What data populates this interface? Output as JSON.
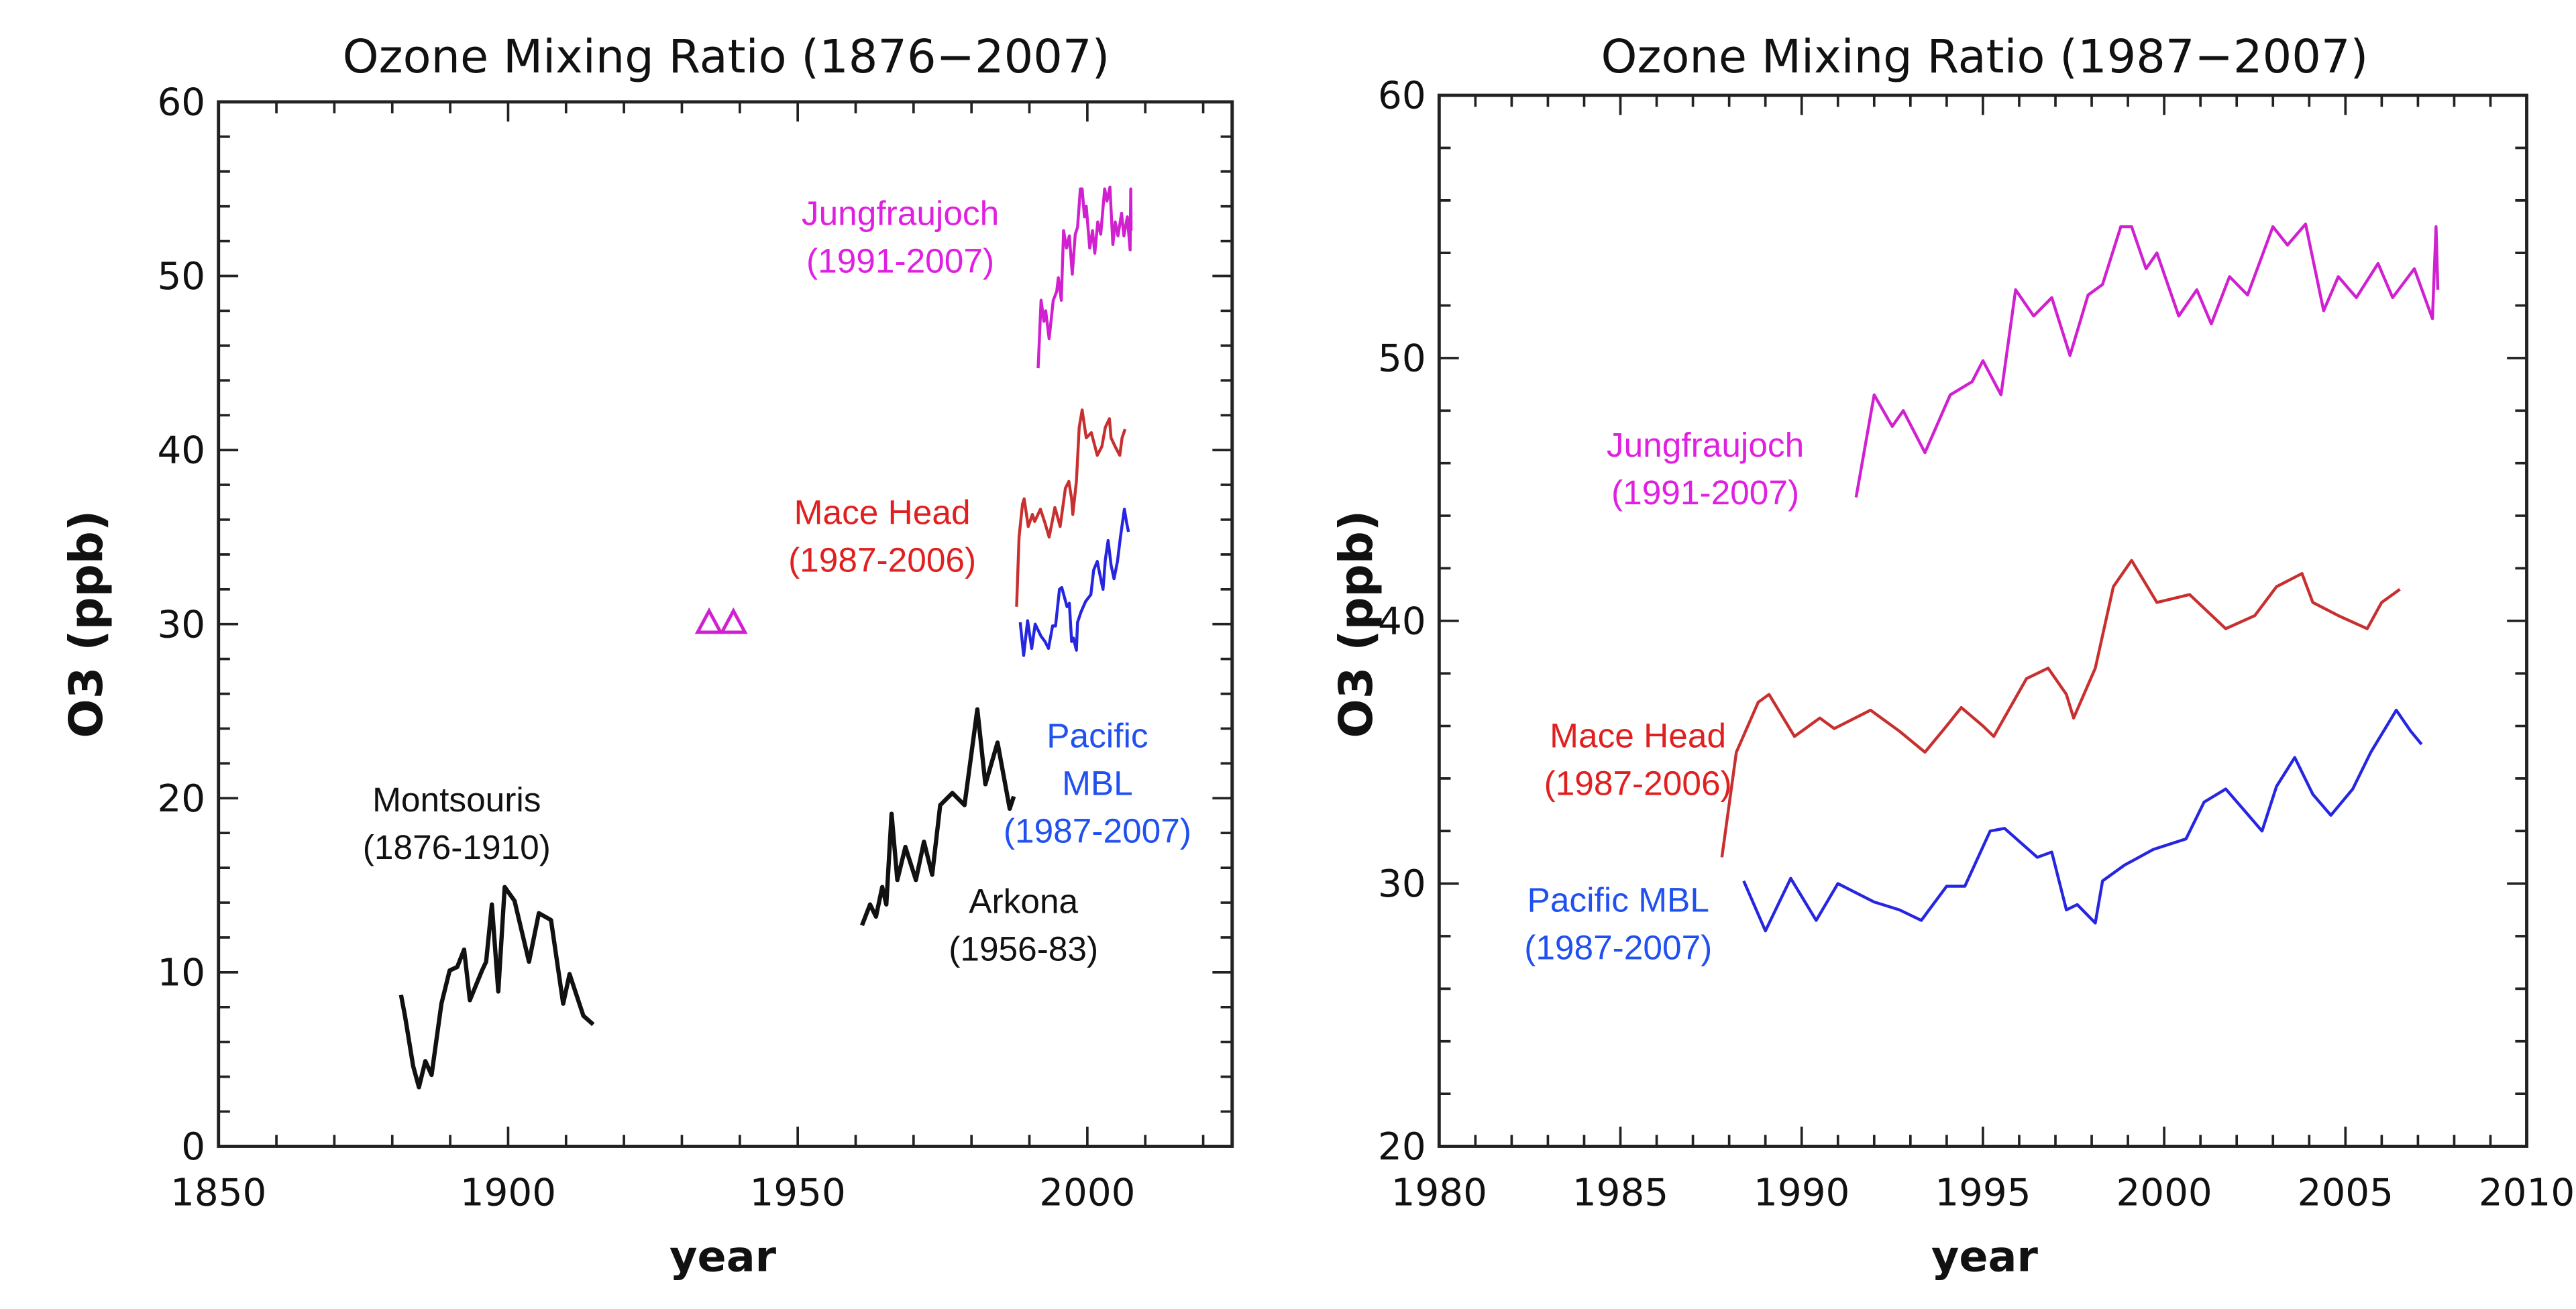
{
  "chart_data": [
    {
      "type": "line",
      "title": "Ozone Mixing Ratio (1876−2007)",
      "xlabel": "year",
      "ylabel": "O3 (ppb)",
      "xlim": [
        1850,
        2025
      ],
      "ylim": [
        0,
        60
      ],
      "xticks": [
        "1850",
        "1900",
        "1950",
        "2000"
      ],
      "yticks": [
        "0",
        "10",
        "20",
        "30",
        "40",
        "50",
        "60"
      ],
      "grid": false,
      "series": [
        {
          "name": "Montsouris (1876-1910)",
          "color": "#111111",
          "x": [
            1881.5,
            1882.2,
            1883.6,
            1884.6,
            1885.7,
            1886.8,
            1888.5,
            1889.9,
            1891.2,
            1892.4,
            1893.4,
            1895.5,
            1896.2,
            1897.2,
            1898.3,
            1899.4,
            1901.1,
            1903.6,
            1905.3,
            1907.4,
            1909.5,
            1910.6,
            1913.0,
            1914.7
          ],
          "y": [
            8.7,
            7.5,
            4.6,
            3.4,
            4.9,
            4.1,
            8.2,
            10.1,
            10.3,
            11.3,
            8.4,
            10.1,
            10.6,
            13.9,
            8.9,
            14.9,
            14.1,
            10.6,
            13.4,
            13.0,
            8.2,
            9.9,
            7.5,
            7.0
          ]
        },
        {
          "name": "Arkona (1956-83)",
          "color": "#111111",
          "x": [
            1961.1,
            1962.5,
            1963.5,
            1964.6,
            1965.3,
            1966.2,
            1967.2,
            1968.6,
            1970.4,
            1971.8,
            1973.2,
            1974.6,
            1976.7,
            1978.8,
            1981.0,
            1982.4,
            1984.5,
            1986.6,
            1987.3
          ],
          "y": [
            12.7,
            13.9,
            13.2,
            14.9,
            13.9,
            19.1,
            15.3,
            17.2,
            15.3,
            17.5,
            15.6,
            19.6,
            20.3,
            19.6,
            25.1,
            20.8,
            23.2,
            19.4,
            20.1
          ]
        },
        {
          "name": "",
          "color": "#d020d0",
          "marker": "triangle",
          "x": [
            1934.7,
            1938.9
          ],
          "y": [
            30.1,
            30.1
          ]
        },
        {
          "name": "Jungfraujoch (1991-2007)",
          "color": "#d020d0",
          "x": [
            1991.5,
            1992.0,
            1992.5,
            1992.8,
            1993.4,
            1994.1,
            1994.7,
            1995.0,
            1995.5,
            1995.9,
            1996.4,
            1996.9,
            1997.4,
            1997.9,
            1998.3,
            1998.8,
            1999.1,
            1999.5,
            1999.8,
            2000.4,
            2000.9,
            2001.3,
            2001.8,
            2002.3,
            2003.0,
            2003.4,
            2003.9,
            2004.4,
            2004.8,
            2005.3,
            2005.9,
            2006.3,
            2006.9,
            2007.4,
            2007.5,
            2007.55
          ],
          "y": [
            44.7,
            48.6,
            47.4,
            48.0,
            46.4,
            48.6,
            49.1,
            49.9,
            48.6,
            52.6,
            51.6,
            52.3,
            50.1,
            52.4,
            52.8,
            55.0,
            55.0,
            53.4,
            54.0,
            51.6,
            52.6,
            51.3,
            53.1,
            52.4,
            55.0,
            54.3,
            55.1,
            51.8,
            53.1,
            52.3,
            53.6,
            52.3,
            53.4,
            51.5,
            55.0,
            52.6
          ]
        },
        {
          "name": "Mace Head (1987-2006)",
          "color": "#c83030",
          "x": [
            1987.8,
            1988.2,
            1988.8,
            1989.1,
            1989.8,
            1990.5,
            1990.9,
            1991.9,
            1992.7,
            1993.4,
            1994.0,
            1994.4,
            1995.0,
            1995.3,
            1996.2,
            1996.8,
            1997.3,
            1997.5,
            1998.1,
            1998.6,
            1999.1,
            1999.8,
            2000.7,
            2001.7,
            2002.5,
            2003.1,
            2003.8,
            2004.1,
            2004.8,
            2005.6,
            2006.0,
            2006.5
          ],
          "y": [
            31.0,
            35.0,
            36.9,
            37.2,
            35.6,
            36.3,
            35.9,
            36.6,
            35.8,
            35.0,
            36.0,
            36.7,
            36.0,
            35.6,
            37.8,
            38.2,
            37.2,
            36.3,
            38.2,
            41.3,
            42.3,
            40.7,
            41.0,
            39.7,
            40.2,
            41.3,
            41.8,
            40.7,
            40.2,
            39.7,
            40.7,
            41.2
          ]
        },
        {
          "name": "Pacific MBL (1987-2007)",
          "color": "#2626e0",
          "x": [
            1988.4,
            1989.0,
            1989.7,
            1990.4,
            1991.0,
            1992.0,
            1992.7,
            1993.3,
            1994.0,
            1994.5,
            1995.2,
            1995.6,
            1996.5,
            1996.9,
            1997.3,
            1997.6,
            1998.1,
            1998.3,
            1998.9,
            1999.7,
            2000.6,
            2001.1,
            2001.7,
            2002.2,
            2002.7,
            2003.1,
            2003.6,
            2004.1,
            2004.6,
            2005.2,
            2005.7,
            2006.4,
            2006.8,
            2007.1
          ],
          "y": [
            30.1,
            28.2,
            30.2,
            28.6,
            30.0,
            29.3,
            29.0,
            28.6,
            29.9,
            29.9,
            32.0,
            32.1,
            31.0,
            31.2,
            29.0,
            29.2,
            28.5,
            30.1,
            30.7,
            31.3,
            31.7,
            33.1,
            33.6,
            32.8,
            32.0,
            33.7,
            34.8,
            33.4,
            32.6,
            33.6,
            35.0,
            36.6,
            35.8,
            35.3
          ]
        }
      ],
      "annotations": [
        {
          "lines": [
            "Jungfraujoch",
            "(1991-2007)"
          ],
          "color": "#e020e0"
        },
        {
          "lines": [
            "Mace Head",
            "(1987-2006)"
          ],
          "color": "#e02020"
        },
        {
          "lines": [
            "Pacific",
            "MBL",
            "(1987-2007)"
          ],
          "color": "#2050f0"
        },
        {
          "lines": [
            "Montsouris",
            "(1876-1910)"
          ],
          "color": "#111111"
        },
        {
          "lines": [
            "Arkona",
            "(1956-83)"
          ],
          "color": "#111111"
        }
      ]
    },
    {
      "type": "line",
      "title": "Ozone Mixing Ratio (1987−2007)",
      "xlabel": "year",
      "ylabel": "O3 (ppb)",
      "xlim": [
        1980,
        2010
      ],
      "ylim": [
        20,
        60
      ],
      "xticks": [
        "1980",
        "1985",
        "1990",
        "1995",
        "2000",
        "2005",
        "2010"
      ],
      "yticks": [
        "20",
        "30",
        "40",
        "50",
        "60"
      ],
      "grid": false,
      "series": [
        {
          "name": "Jungfraujoch (1991-2007)",
          "color": "#d020d0",
          "x": [
            1991.5,
            1992.0,
            1992.5,
            1992.8,
            1993.4,
            1994.1,
            1994.7,
            1995.0,
            1995.5,
            1995.9,
            1996.4,
            1996.9,
            1997.4,
            1997.9,
            1998.3,
            1998.8,
            1999.1,
            1999.5,
            1999.8,
            2000.4,
            2000.9,
            2001.3,
            2001.8,
            2002.3,
            2003.0,
            2003.4,
            2003.9,
            2004.4,
            2004.8,
            2005.3,
            2005.9,
            2006.3,
            2006.9,
            2007.4,
            2007.5,
            2007.55
          ],
          "y": [
            44.7,
            48.6,
            47.4,
            48.0,
            46.4,
            48.6,
            49.1,
            49.9,
            48.6,
            52.6,
            51.6,
            52.3,
            50.1,
            52.4,
            52.8,
            55.0,
            55.0,
            53.4,
            54.0,
            51.6,
            52.6,
            51.3,
            53.1,
            52.4,
            55.0,
            54.3,
            55.1,
            51.8,
            53.1,
            52.3,
            53.6,
            52.3,
            53.4,
            51.5,
            55.0,
            52.6
          ]
        },
        {
          "name": "Mace Head (1987-2006)",
          "color": "#c83030",
          "x": [
            1987.8,
            1988.2,
            1988.8,
            1989.1,
            1989.8,
            1990.5,
            1990.9,
            1991.9,
            1992.7,
            1993.4,
            1994.0,
            1994.4,
            1995.0,
            1995.3,
            1996.2,
            1996.8,
            1997.3,
            1997.5,
            1998.1,
            1998.6,
            1999.1,
            1999.8,
            2000.7,
            2001.7,
            2002.5,
            2003.1,
            2003.8,
            2004.1,
            2004.8,
            2005.6,
            2006.0,
            2006.5
          ],
          "y": [
            31.0,
            35.0,
            36.9,
            37.2,
            35.6,
            36.3,
            35.9,
            36.6,
            35.8,
            35.0,
            36.0,
            36.7,
            36.0,
            35.6,
            37.8,
            38.2,
            37.2,
            36.3,
            38.2,
            41.3,
            42.3,
            40.7,
            41.0,
            39.7,
            40.2,
            41.3,
            41.8,
            40.7,
            40.2,
            39.7,
            40.7,
            41.2
          ]
        },
        {
          "name": "Pacific MBL (1987-2007)",
          "color": "#2626e0",
          "x": [
            1988.4,
            1989.0,
            1989.7,
            1990.4,
            1991.0,
            1992.0,
            1992.7,
            1993.3,
            1994.0,
            1994.5,
            1995.2,
            1995.6,
            1996.5,
            1996.9,
            1997.3,
            1997.6,
            1998.1,
            1998.3,
            1998.9,
            1999.7,
            2000.6,
            2001.1,
            2001.7,
            2002.2,
            2002.7,
            2003.1,
            2003.6,
            2004.1,
            2004.6,
            2005.2,
            2005.7,
            2006.4,
            2006.8,
            2007.1
          ],
          "y": [
            30.1,
            28.2,
            30.2,
            28.6,
            30.0,
            29.3,
            29.0,
            28.6,
            29.9,
            29.9,
            32.0,
            32.1,
            31.0,
            31.2,
            29.0,
            29.2,
            28.5,
            30.1,
            30.7,
            31.3,
            31.7,
            33.1,
            33.6,
            32.8,
            32.0,
            33.7,
            34.8,
            33.4,
            32.6,
            33.6,
            35.0,
            36.6,
            35.8,
            35.3
          ]
        }
      ],
      "annotations": [
        {
          "lines": [
            "Jungfraujoch",
            "(1991-2007)"
          ],
          "color": "#e020e0"
        },
        {
          "lines": [
            "Mace Head",
            "(1987-2006)"
          ],
          "color": "#e02020"
        },
        {
          "lines": [
            "Pacific MBL",
            "(1987-2007)"
          ],
          "color": "#2050f0"
        }
      ]
    }
  ]
}
